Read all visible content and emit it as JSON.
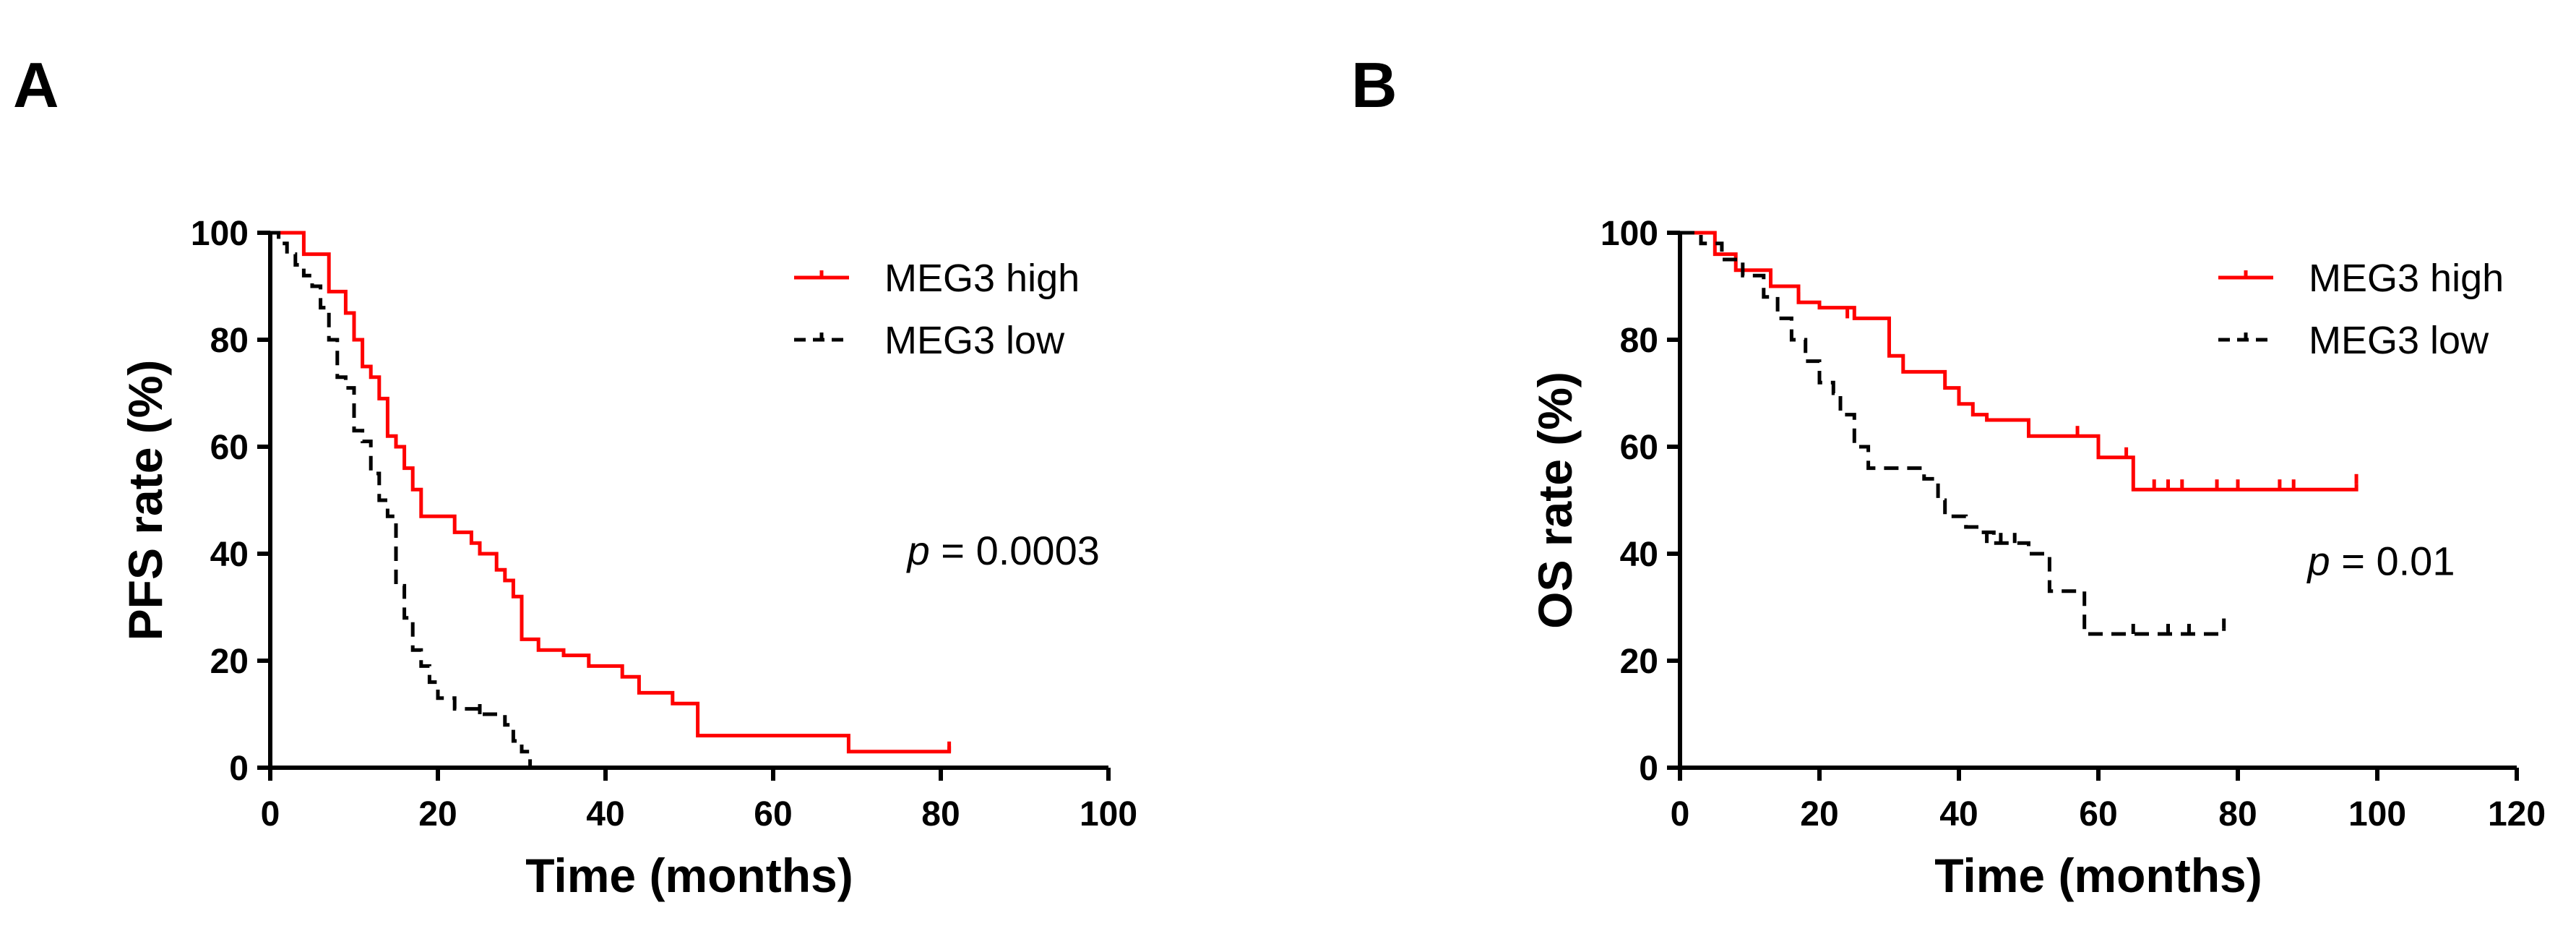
{
  "chart_data": [
    {
      "panel": "A",
      "type": "line",
      "subtype": "kaplan-meier",
      "ylabel": "PFS rate (%)",
      "xlabel": "Time (months)",
      "xlim": [
        0,
        100
      ],
      "ylim": [
        0,
        100
      ],
      "xticks": [
        0,
        20,
        40,
        60,
        80,
        100
      ],
      "yticks": [
        0,
        20,
        40,
        60,
        80,
        100
      ],
      "xtick_labels": [
        "0",
        "20",
        "40",
        "60",
        "80",
        "100"
      ],
      "ytick_labels": [
        "0",
        "20",
        "40",
        "60",
        "80",
        "100"
      ],
      "annotation": {
        "p_symbol": "p",
        "p_text": " = 0.0003",
        "x": 76,
        "y": 38
      },
      "legend": {
        "placement": "top-right"
      },
      "series": [
        {
          "name": "MEG3 high",
          "color": "#ff0000",
          "style": "solid",
          "x": [
            0,
            4,
            7,
            9,
            10,
            11,
            12,
            13,
            14,
            15,
            16,
            17,
            18,
            20,
            22,
            24,
            25,
            27,
            28,
            29,
            30,
            32,
            35,
            38,
            40,
            42,
            44,
            46,
            48,
            50,
            51,
            55,
            60,
            69,
            75,
            81
          ],
          "y": [
            100,
            96,
            89,
            85,
            80,
            75,
            73,
            69,
            62,
            60,
            56,
            52,
            47,
            47,
            44,
            42,
            40,
            37,
            35,
            32,
            24,
            22,
            21,
            19,
            19,
            17,
            14,
            14,
            12,
            12,
            6,
            6,
            6,
            3,
            3,
            4
          ],
          "censored": [
            [
              81,
              3
            ]
          ]
        },
        {
          "name": "MEG3 low",
          "color": "#000000",
          "style": "dashed",
          "x": [
            0,
            1,
            2,
            3,
            4,
            5,
            6,
            7,
            8,
            9,
            10,
            11,
            12,
            13,
            14,
            15,
            16,
            17,
            18,
            19,
            20,
            22,
            25,
            28,
            29,
            30,
            31
          ],
          "y": [
            100,
            98,
            96,
            94,
            92,
            90,
            86,
            80,
            73,
            71,
            63,
            61,
            55,
            50,
            47,
            34,
            28,
            22,
            19,
            16,
            13,
            11,
            10,
            8,
            5,
            3,
            0
          ],
          "censored": [
            [
              25,
              10
            ]
          ]
        }
      ]
    },
    {
      "panel": "B",
      "type": "line",
      "subtype": "kaplan-meier",
      "ylabel": "OS rate (%)",
      "xlabel": "Time (months)",
      "xlim": [
        0,
        120
      ],
      "ylim": [
        0,
        100
      ],
      "xticks": [
        0,
        20,
        40,
        60,
        80,
        100,
        120
      ],
      "yticks": [
        0,
        20,
        40,
        60,
        80,
        100
      ],
      "xtick_labels": [
        "0",
        "20",
        "40",
        "60",
        "80",
        "100",
        "120"
      ],
      "ytick_labels": [
        "0",
        "20",
        "40",
        "60",
        "80",
        "100"
      ],
      "annotation": {
        "p_symbol": "p",
        "p_text": " = 0.01",
        "x": 90,
        "y": 36
      },
      "legend": {
        "placement": "top-right"
      },
      "series": [
        {
          "name": "MEG3 high",
          "color": "#ff0000",
          "style": "solid",
          "x": [
            0,
            5,
            8,
            13,
            17,
            20,
            25,
            30,
            32,
            34,
            38,
            40,
            42,
            44,
            48,
            50,
            55,
            58,
            60,
            65,
            70,
            75,
            80,
            85,
            90,
            95,
            97
          ],
          "y": [
            100,
            96,
            93,
            90,
            87,
            86,
            84,
            77,
            74,
            74,
            71,
            68,
            66,
            65,
            65,
            62,
            62,
            62,
            58,
            52,
            52,
            52,
            52,
            52,
            52,
            52,
            53
          ],
          "censored": [
            [
              17,
              87
            ],
            [
              24,
              84
            ],
            [
              50,
              62
            ],
            [
              57,
              62
            ],
            [
              64,
              58
            ],
            [
              68,
              52
            ],
            [
              70,
              52
            ],
            [
              72,
              52
            ],
            [
              77,
              52
            ],
            [
              80,
              52
            ],
            [
              86,
              52
            ],
            [
              88,
              52
            ],
            [
              97,
              53
            ]
          ]
        },
        {
          "name": "MEG3 low",
          "color": "#000000",
          "style": "dashed",
          "x": [
            0,
            3,
            6,
            9,
            12,
            14,
            16,
            18,
            20,
            22,
            23,
            25,
            27,
            32,
            35,
            37,
            38,
            41,
            43,
            45,
            48,
            50,
            53,
            55,
            57,
            58,
            60,
            65,
            70,
            75,
            78
          ],
          "y": [
            100,
            98,
            95,
            92,
            88,
            84,
            80,
            76,
            72,
            70,
            66,
            60,
            56,
            56,
            54,
            50,
            47,
            45,
            44,
            42,
            42,
            40,
            33,
            33,
            33,
            25,
            25,
            25,
            25,
            25,
            26
          ],
          "censored": [
            [
              44,
              42
            ],
            [
              46,
              42
            ],
            [
              48,
              42
            ],
            [
              65,
              25
            ],
            [
              70,
              25
            ],
            [
              73,
              25
            ],
            [
              78,
              26
            ]
          ]
        }
      ]
    }
  ]
}
